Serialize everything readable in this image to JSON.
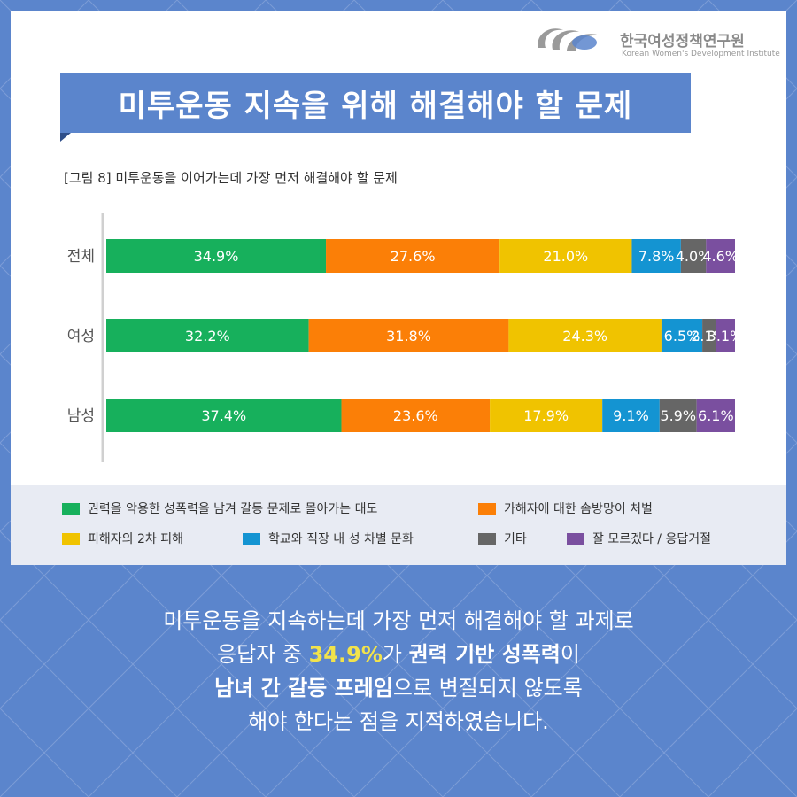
{
  "header": {
    "org_name": "한국여성정책연구원",
    "org_english": "Korean Women's Development Institute",
    "title": "미투운동 지속을 위해 해결해야 할 문제"
  },
  "colors": {
    "background": "#5b85cc",
    "accent": "#5b85cc",
    "highlight": "#f2e34b",
    "legend_bg": "#e8ebf3"
  },
  "chart_data": {
    "type": "bar",
    "orientation": "horizontal",
    "stacked": true,
    "normalized_to_100": true,
    "title": "[그림 8] 미투운동을 이어가는데 가장 먼저 해결해야 할 문제",
    "categories": [
      "전체",
      "여성",
      "남성"
    ],
    "series": [
      {
        "name": "권력을 악용한 성폭력을 남겨 갈등 문제로 몰아가는 태도",
        "color": "#17b05c",
        "values": [
          34.9,
          32.2,
          37.4
        ],
        "labels": [
          "34.9%",
          "32.2%",
          "37.4%"
        ]
      },
      {
        "name": "가해자에 대한 솜방망이 처벌",
        "color": "#fb7f07",
        "values": [
          27.6,
          31.8,
          23.6
        ],
        "labels": [
          "27.6%",
          "31.8%",
          "23.6%"
        ]
      },
      {
        "name": "피해자의 2차 피해",
        "color": "#f0c300",
        "values": [
          21.0,
          24.3,
          17.9
        ],
        "labels": [
          "21.0%",
          "24.3%",
          "17.9%"
        ]
      },
      {
        "name": "학교와 직장 내 성 차별 문화",
        "color": "#1494d2",
        "values": [
          7.8,
          6.5,
          9.1
        ],
        "labels": [
          "7.8%",
          "6.5%",
          "9.1%"
        ]
      },
      {
        "name": "기타",
        "color": "#666666",
        "values": [
          4.0,
          2.1,
          5.9
        ],
        "labels": [
          "4.0%",
          "2.1%",
          "5.9%"
        ]
      },
      {
        "name": "잘 모르겠다 / 응답거절",
        "color": "#7a4f9f",
        "values": [
          4.6,
          3.1,
          6.1
        ],
        "labels": [
          "4.6%",
          "3.1%",
          "6.1%"
        ]
      }
    ],
    "legend": "bottom",
    "grid": false
  },
  "caption": {
    "line1": "미투운동을 지속하는데 가장 먼저 해결해야 할 과제로",
    "line2_a": "응답자 중 ",
    "line2_pct": "34.9%",
    "line2_b": "가 ",
    "line2_bold": "권력 기반 성폭력",
    "line2_c": "이",
    "line3_bold": "남녀 간 갈등 프레임",
    "line3_c": "으로 변질되지 않도록",
    "line4": "해야 한다는 점을 지적하였습니다."
  }
}
